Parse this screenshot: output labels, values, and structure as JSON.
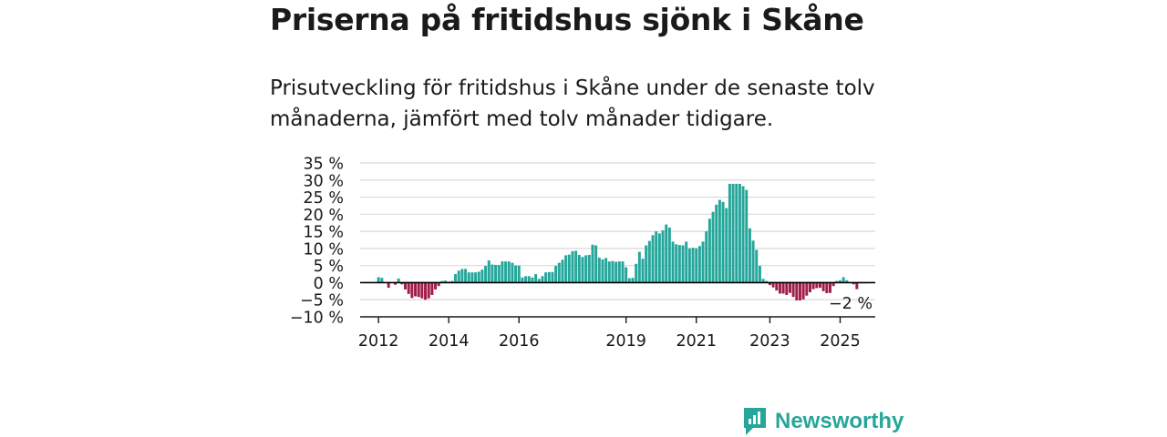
{
  "header": {
    "title": "Priserna på fritidshus sjönk i Skåne",
    "subtitle": "Prisutveckling för fritidshus i Skåne under de senaste tolv månaderna, jämfört med tolv månader tidigare."
  },
  "brand": {
    "name": "Newsworthy",
    "icon": "newsworthy-logo-icon",
    "color": "#26a69a"
  },
  "colors": {
    "positive": "#26a69a",
    "negative": "#a01c4a",
    "grid": "#d9d9d9",
    "zero_line": "#000000"
  },
  "chart_data": {
    "type": "bar",
    "title": "",
    "xlabel": "",
    "ylabel": "",
    "ylim": [
      -10,
      35
    ],
    "yticks": [
      "35 %",
      "30 %",
      "25 %",
      "20 %",
      "15 %",
      "10 %",
      "5 %",
      "0 %",
      "−5 %",
      "−10 %"
    ],
    "ytick_values": [
      35,
      30,
      25,
      20,
      15,
      10,
      5,
      0,
      -5,
      -10
    ],
    "xticks": [
      {
        "label": "2012",
        "index": 5
      },
      {
        "label": "2014",
        "index": 26
      },
      {
        "label": "2016",
        "index": 47
      },
      {
        "label": "2019",
        "index": 79
      },
      {
        "label": "2021",
        "index": 100
      },
      {
        "label": "2023",
        "index": 122
      },
      {
        "label": "2025",
        "index": 143
      }
    ],
    "grid": true,
    "annotation": "−2 %",
    "series": [
      {
        "values": [
          0,
          0,
          0,
          0,
          0,
          1.6,
          1.4,
          0,
          -1.5,
          0,
          -0.6,
          1.2,
          -0.5,
          -2,
          -3.3,
          -4.5,
          -4,
          -4.2,
          -4.6,
          -5,
          -4.6,
          -3.6,
          -2,
          -1,
          0.5,
          0.6,
          0.3,
          0.5,
          2.5,
          3.5,
          4,
          4,
          3,
          3,
          3,
          3.2,
          3.8,
          4.9,
          6.5,
          5.3,
          5.2,
          5.2,
          6.2,
          6.2,
          6.2,
          5.8,
          5,
          5,
          1.5,
          1.9,
          1.9,
          1.5,
          2.5,
          1.1,
          1.9,
          3,
          3.1,
          3.1,
          4.9,
          5.8,
          6.7,
          8,
          8.2,
          9.2,
          9.3,
          8.1,
          7.5,
          8,
          8.1,
          11.1,
          10.9,
          7.3,
          6.8,
          7.2,
          6.2,
          6.3,
          6.1,
          6.2,
          6.2,
          4.5,
          1.3,
          1.4,
          5.5,
          9,
          7,
          10.9,
          12.2,
          13.9,
          15,
          14.4,
          15.3,
          17,
          16.1,
          12,
          11.2,
          11,
          10.9,
          12,
          10,
          10.2,
          10,
          10.7,
          12,
          15,
          18.7,
          20.7,
          22.8,
          24.2,
          23.6,
          21.8,
          28.9,
          28.9,
          28.9,
          28.9,
          28.2,
          27.1,
          15.9,
          12.3,
          9.6,
          4.9,
          1.1,
          0.5,
          -0.7,
          -1.4,
          -2.3,
          -3.2,
          -3.2,
          -3.6,
          -3,
          -4.2,
          -5.2,
          -5.2,
          -4.9,
          -3.8,
          -2.8,
          -1.9,
          -1.6,
          -1.5,
          -2.5,
          -3.1,
          -3,
          -1,
          0.5,
          0.7,
          1.6,
          0.7,
          0,
          -0.5,
          -1.9,
          -0.2,
          -0.2,
          -0.2,
          0,
          0
        ]
      }
    ]
  }
}
